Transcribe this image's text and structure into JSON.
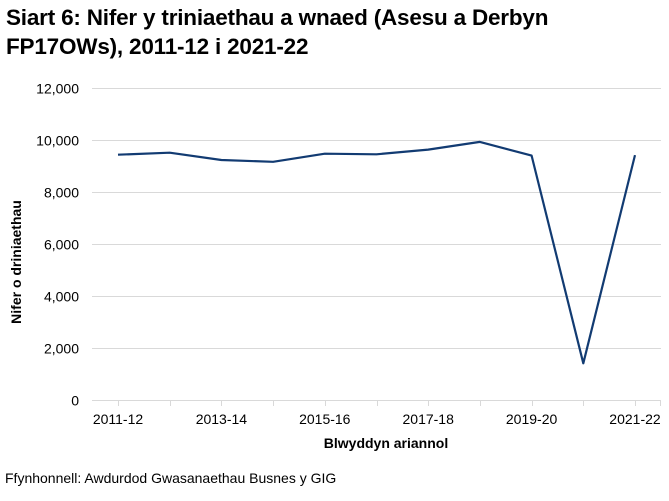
{
  "title": {
    "line1": "Siart 6: Nifer y triniaethau a wnaed (Asesu a Derbyn",
    "line2": "FP17OWs), 2011-12 i 2021-22"
  },
  "source": "Ffynhonnell: Awdurdod Gwasanaethau Busnes y GIG",
  "colors": {
    "line": "#123b72",
    "gridline": "#d9d9d9",
    "axis": "#d9d9d9"
  },
  "chart_data": {
    "type": "line",
    "title": "Siart 6: Nifer y triniaethau a wnaed (Asesu a Derbyn FP17OWs), 2011-12 i 2021-22",
    "xlabel": "Blwyddyn ariannol",
    "ylabel": "Nifer o driniaethau",
    "ylim": [
      0,
      12000
    ],
    "yticks": [
      0,
      2000,
      4000,
      6000,
      8000,
      10000,
      12000
    ],
    "ytick_labels": [
      "0",
      "2,000",
      "4,000",
      "6,000",
      "8,000",
      "10,000",
      "12,000"
    ],
    "grid": true,
    "legend": null,
    "categories": [
      "2011-12",
      "2012-13",
      "2013-14",
      "2014-15",
      "2015-16",
      "2016-17",
      "2017-18",
      "2018-19",
      "2019-20",
      "2020-21",
      "2021-22"
    ],
    "xtick_labels_shown": [
      "2011-12",
      "2013-14",
      "2015-16",
      "2017-18",
      "2019-20",
      "2021-22"
    ],
    "series": [
      {
        "name": "Nifer o driniaethau",
        "values": [
          9435,
          9510,
          9230,
          9160,
          9475,
          9450,
          9630,
          9925,
          9400,
          1410,
          9420
        ]
      }
    ]
  }
}
